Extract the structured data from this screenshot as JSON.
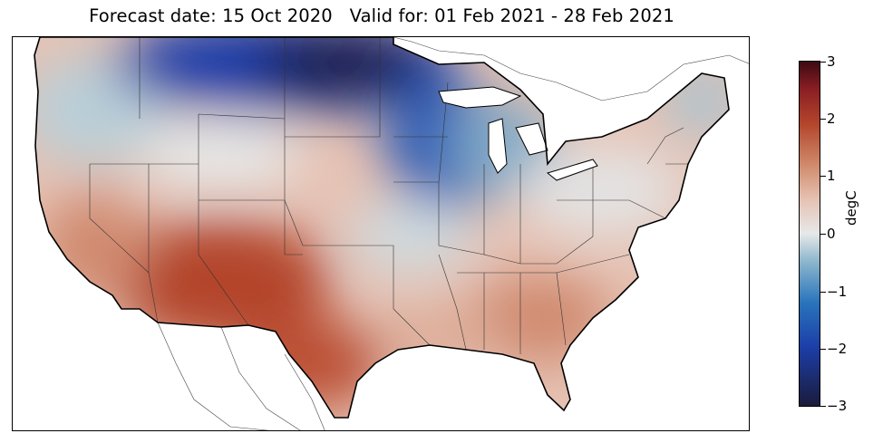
{
  "title": "Forecast date: 15 Oct 2020   Valid for: 01 Feb 2021 - 28 Feb 2021",
  "colorbar": {
    "label": "degC",
    "min": -3,
    "max": 3,
    "ticks": [
      "3",
      "2",
      "1",
      "0",
      "−1",
      "−2",
      "−3"
    ],
    "colors": {
      "minus3": "#1b1b3a",
      "minus2": "#1c3ea8",
      "minus1": "#5f9ec0",
      "zero": "#e6e8e8",
      "plus1": "#d49a80",
      "plus2": "#b3452c",
      "plus3": "#3d0a14"
    }
  },
  "map": {
    "region": "Contiguous United States",
    "variable": "temperature anomaly",
    "anomalies": [
      {
        "area": "Northern Plains",
        "value": -3
      },
      {
        "area": "Upper Midwest",
        "value": -2
      },
      {
        "area": "Great Lakes",
        "value": -1
      },
      {
        "area": "Pacific Northwest",
        "value": -0.5
      },
      {
        "area": "Northeast",
        "value": 0.5
      },
      {
        "area": "Southeast",
        "value": 1
      },
      {
        "area": "Texas",
        "value": 1.7
      },
      {
        "area": "Southwest",
        "value": 2
      },
      {
        "area": "Florida",
        "value": 1.2
      }
    ]
  }
}
